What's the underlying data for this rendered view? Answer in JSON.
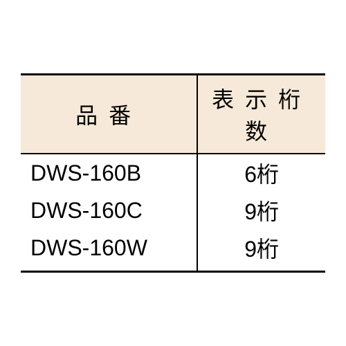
{
  "table": {
    "header_bg": "#f6e9d9",
    "border_color": "#000000",
    "columns": [
      {
        "label": "品番"
      },
      {
        "label": "表示桁数"
      }
    ],
    "rows": [
      {
        "model": "DWS-160B",
        "digits": "6桁"
      },
      {
        "model": "DWS-160C",
        "digits": "9桁"
      },
      {
        "model": "DWS-160W",
        "digits": "9桁"
      }
    ]
  }
}
